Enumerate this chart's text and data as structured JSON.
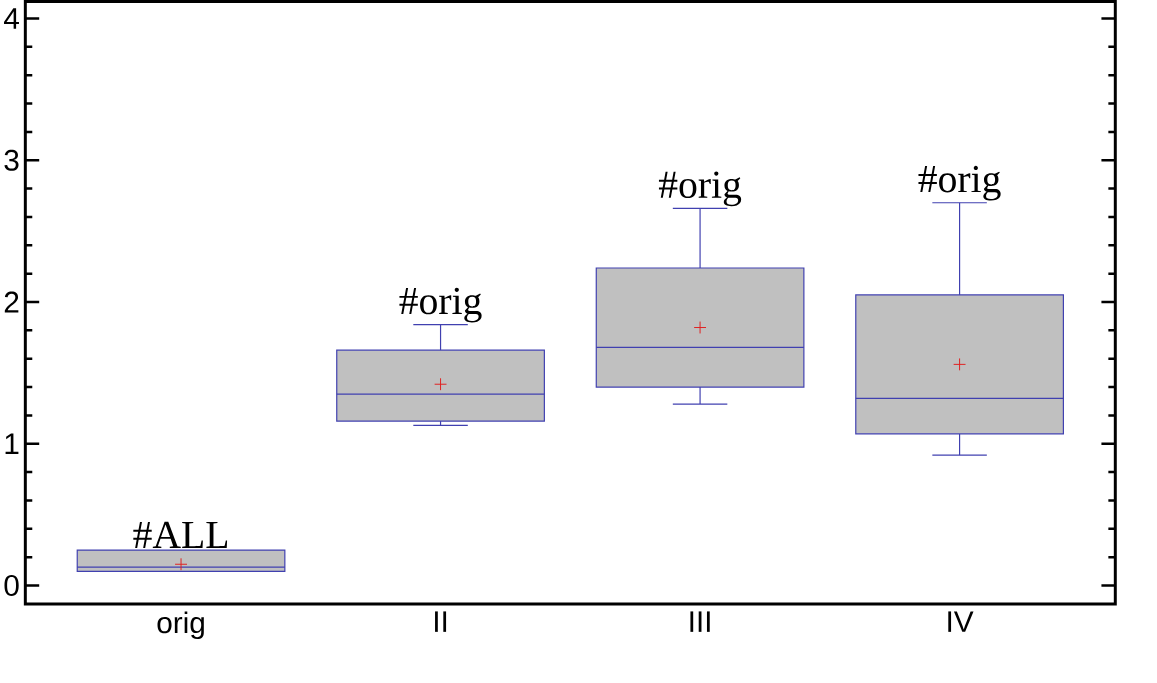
{
  "chart_data": {
    "type": "box",
    "categories": [
      "orig",
      "II",
      "III",
      "IV"
    ],
    "boxes": [
      {
        "low": 0.1,
        "q1": 0.1,
        "median": 0.13,
        "q3": 0.25,
        "high": 0.25,
        "mean": 0.15
      },
      {
        "low": 1.13,
        "q1": 1.16,
        "median": 1.35,
        "q3": 1.66,
        "high": 1.84,
        "mean": 1.42
      },
      {
        "low": 1.28,
        "q1": 1.4,
        "median": 1.68,
        "q3": 2.24,
        "high": 2.66,
        "mean": 1.82
      },
      {
        "low": 0.92,
        "q1": 1.07,
        "median": 1.32,
        "q3": 2.05,
        "high": 2.7,
        "mean": 1.56
      }
    ],
    "color": "#c0c0c0",
    "ylim": [
      -0.13,
      4.12
    ],
    "yticks": [
      0,
      1,
      2,
      3,
      4
    ],
    "annotations": [
      {
        "text": "#ALL",
        "x": "orig",
        "y": 0.25
      },
      {
        "text": "#orig",
        "x": "II",
        "y": 1.84
      },
      {
        "text": "#orig",
        "x": "III",
        "y": 2.66
      },
      {
        "text": "#orig",
        "x": "IV",
        "y": 2.7
      }
    ]
  }
}
